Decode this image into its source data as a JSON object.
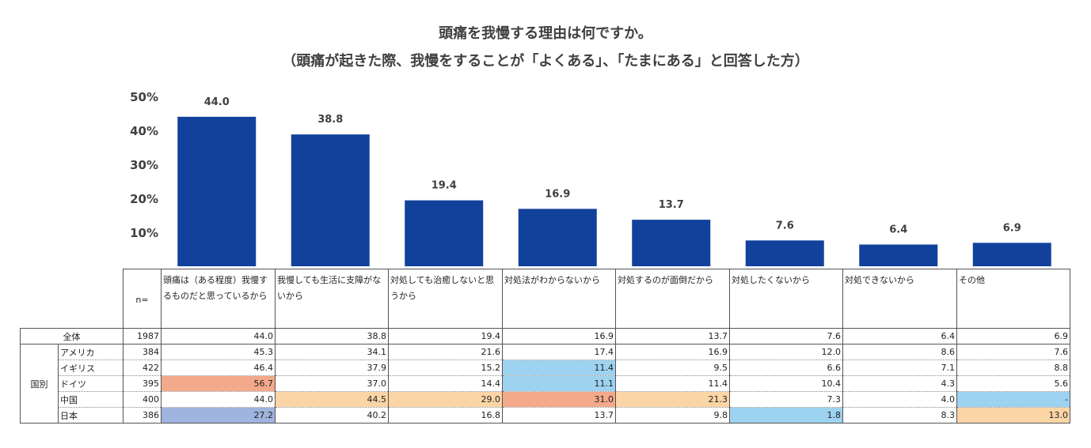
{
  "title": {
    "line1": "頭痛を我慢する理由は何ですか。",
    "line2": "（頭痛が起きた際、我慢をすることが「よくある」、「たまにある」と回答した方）"
  },
  "colors": {
    "bar": "#12419c",
    "blue_light": "#9dd3f0",
    "orange": "#f4a98a",
    "peach": "#fcd5a6",
    "periwinkle": "#9fb4de"
  },
  "chart_data": {
    "type": "bar",
    "title": "頭痛を我慢する理由は何ですか。",
    "categories": [
      "頭痛は（ある程度）我慢するものだと思っているから",
      "我慢しても生活に支障がないから",
      "対処しても治癒しないと思うから",
      "対処法がわからないから",
      "対処するのが面倒だから",
      "対処したくないから",
      "対処できないから",
      "その他"
    ],
    "values": [
      44.0,
      38.8,
      19.4,
      16.9,
      13.7,
      7.6,
      6.4,
      6.9
    ],
    "value_labels": [
      "44.0",
      "38.8",
      "19.4",
      "16.9",
      "13.7",
      "7.6",
      "6.4",
      "6.9"
    ],
    "ylim": [
      0,
      50
    ],
    "yticks": [
      "10%",
      "20%",
      "30%",
      "40%",
      "50%"
    ],
    "ytick_values": [
      10,
      20,
      30,
      40,
      50
    ],
    "xlabel": "",
    "ylabel": "",
    "grid": false
  },
  "table": {
    "n_header": "n=",
    "headers": [
      "頭痛は（ある程度）我慢するものだと思っているから",
      "我慢しても生活に支障がないから",
      "対処しても治癒しないと思うから",
      "対処法がわからないから",
      "対処するのが面倒だから",
      "対処したくないから",
      "対処できないから",
      "その他"
    ],
    "total": {
      "label": "全体",
      "n": "1987",
      "values": [
        "44.0",
        "38.8",
        "19.4",
        "16.9",
        "13.7",
        "7.6",
        "6.4",
        "6.9"
      ]
    },
    "group_label": "国別",
    "countries": [
      {
        "name": "アメリカ",
        "n": "384",
        "values": [
          "45.3",
          "34.1",
          "21.6",
          "17.4",
          "16.9",
          "12.0",
          "8.6",
          "7.6"
        ],
        "highlight": [
          "",
          "",
          "",
          "",
          "",
          "",
          "",
          ""
        ]
      },
      {
        "name": "イギリス",
        "n": "422",
        "values": [
          "46.4",
          "37.9",
          "15.2",
          "11.4",
          "9.5",
          "6.6",
          "7.1",
          "8.8"
        ],
        "highlight": [
          "",
          "",
          "",
          "blue",
          "",
          "",
          "",
          ""
        ]
      },
      {
        "name": "ドイツ",
        "n": "395",
        "values": [
          "56.7",
          "37.0",
          "14.4",
          "11.1",
          "11.4",
          "10.4",
          "4.3",
          "5.6"
        ],
        "highlight": [
          "orange",
          "",
          "",
          "blue",
          "",
          "",
          "",
          ""
        ]
      },
      {
        "name": "中国",
        "n": "400",
        "values": [
          "44.0",
          "44.5",
          "29.0",
          "31.0",
          "21.3",
          "7.3",
          "4.0",
          "-"
        ],
        "highlight": [
          "",
          "peach",
          "peach",
          "orange",
          "peach",
          "",
          "",
          "blue"
        ]
      },
      {
        "name": "日本",
        "n": "386",
        "values": [
          "27.2",
          "40.2",
          "16.8",
          "13.7",
          "9.8",
          "1.8",
          "8.3",
          "13.0"
        ],
        "highlight": [
          "periwinkle",
          "",
          "",
          "",
          "",
          "blue",
          "",
          "peach"
        ]
      }
    ]
  }
}
